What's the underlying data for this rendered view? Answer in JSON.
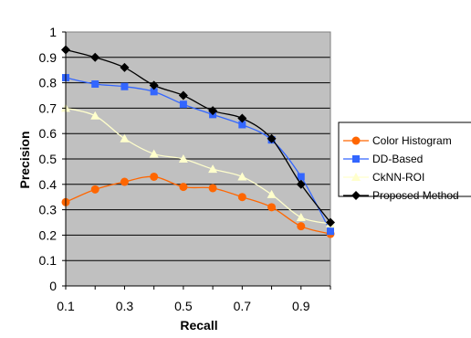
{
  "chart_data": {
    "type": "line",
    "title": "",
    "xlabel": "Recall",
    "ylabel": "Precision",
    "x": [
      0.1,
      0.2,
      0.3,
      0.4,
      0.5,
      0.6,
      0.7,
      0.8,
      0.9,
      1.0
    ],
    "xlim": [
      0.1,
      1.0
    ],
    "ylim": [
      0,
      1
    ],
    "x_tick_labels": [
      "0.1",
      "0.3",
      "0.5",
      "0.7",
      "0.9"
    ],
    "x_tick_values": [
      0.1,
      0.3,
      0.5,
      0.7,
      0.9
    ],
    "y_tick_labels": [
      "0",
      "0.1",
      "0.2",
      "0.3",
      "0.4",
      "0.5",
      "0.6",
      "0.7",
      "0.8",
      "0.9",
      "1"
    ],
    "y_tick_values": [
      0,
      0.1,
      0.2,
      0.3,
      0.4,
      0.5,
      0.6,
      0.7,
      0.8,
      0.9,
      1.0
    ],
    "grid": "horizontal",
    "plot_background": "#c0c0c0",
    "legend_position": "right",
    "series": [
      {
        "name": "Color Histogram",
        "color": "#ff6600",
        "line_color": "#ff6600",
        "marker": "circle",
        "values": [
          0.33,
          0.38,
          0.41,
          0.43,
          0.39,
          0.385,
          0.35,
          0.31,
          0.235,
          0.205
        ]
      },
      {
        "name": "DD-Based",
        "color": "#3366ff",
        "line_color": "#3366ff",
        "marker": "square",
        "values": [
          0.82,
          0.795,
          0.785,
          0.765,
          0.715,
          0.675,
          0.635,
          0.575,
          0.43,
          0.215
        ]
      },
      {
        "name": "CkNN-ROI",
        "color": "#ffffcc",
        "line_color": "#ffffcc",
        "marker": "triangle",
        "values": [
          0.7,
          0.67,
          0.58,
          0.52,
          0.5,
          0.46,
          0.43,
          0.36,
          0.27,
          0.245
        ]
      },
      {
        "name": "Proposed Method",
        "color": "#000000",
        "line_color": "#000000",
        "marker": "diamond",
        "values": [
          0.93,
          0.9,
          0.86,
          0.79,
          0.75,
          0.69,
          0.66,
          0.58,
          0.4,
          0.25
        ]
      }
    ]
  }
}
